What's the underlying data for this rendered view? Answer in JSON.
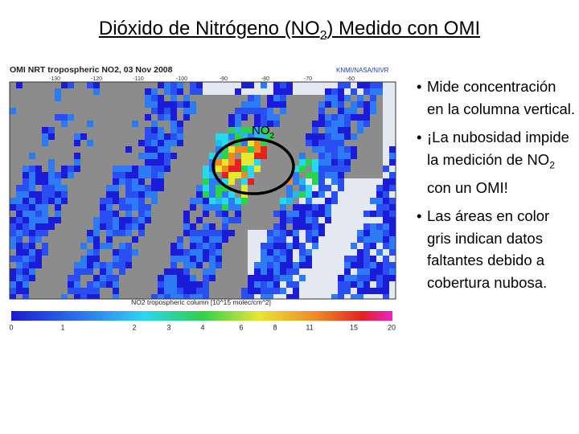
{
  "title": {
    "parts": [
      "Dióxido de Nitrógeno (NO",
      "2",
      ") Medido con OMI"
    ]
  },
  "map": {
    "header": "OMI NRT tropospheric NO2, 03 Nov 2008",
    "credit": "KNMI/NASA/NIVR",
    "longitudes": [
      "-130",
      "-120",
      "-110",
      "-100",
      "-90",
      "-80",
      "-70",
      "-60"
    ],
    "annotation": {
      "parts": [
        "NO",
        "2"
      ]
    },
    "colorbar_label": "NO2 tropospheric column [10^15 molec/cm^2]",
    "colorbar_ticks": [
      "0",
      "1",
      "2",
      "3",
      "4",
      "6",
      "8",
      "11",
      "15",
      "20"
    ]
  },
  "bullets": [
    {
      "parts": [
        "Mide concentración en la columna vertical."
      ]
    },
    {
      "parts": [
        "¡La nubosidad impide la medición de NO",
        "2",
        " con un OMI!"
      ]
    },
    {
      "parts": [
        "Las áreas en color gris indican datos faltantes debido a cobertura nubosa."
      ]
    }
  ]
}
